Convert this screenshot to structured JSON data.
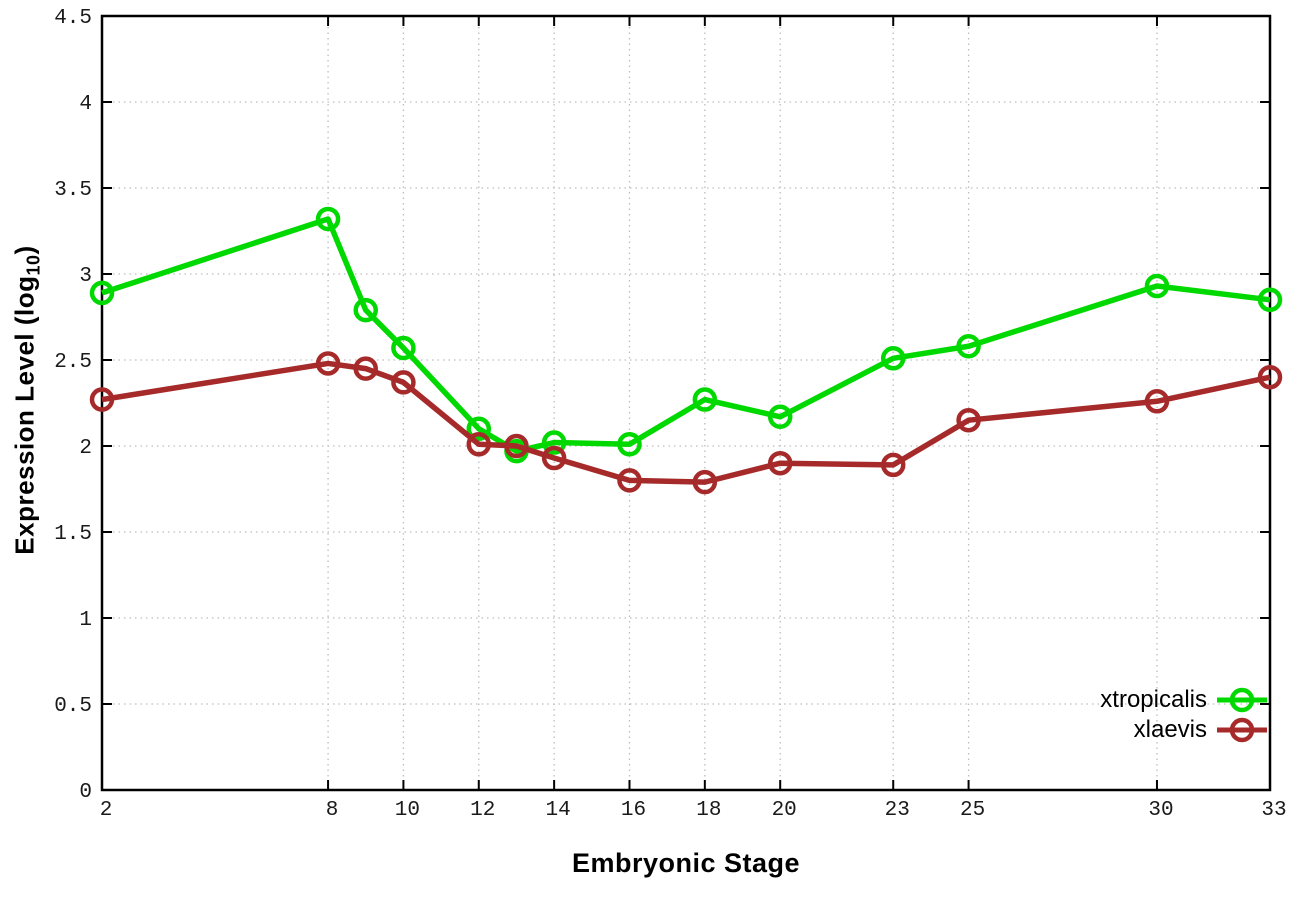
{
  "chart_data": {
    "type": "line",
    "title": "",
    "xlabel": "Embryonic Stage",
    "ylabel": "Expression Level (log10)",
    "ylabel_parts": {
      "pre": "Expression Level (log",
      "sub": "10",
      "post": ")"
    },
    "x": [
      2,
      8,
      9,
      10,
      12,
      13,
      14,
      16,
      18,
      20,
      23,
      25,
      30,
      33
    ],
    "series": [
      {
        "name": "xtropicalis",
        "color": "#00d900",
        "values": [
          2.89,
          3.32,
          2.79,
          2.57,
          2.1,
          1.97,
          2.02,
          2.01,
          2.27,
          2.17,
          2.51,
          2.58,
          2.93,
          2.85
        ]
      },
      {
        "name": "xlaevis",
        "color": "#a62a2a",
        "values": [
          2.27,
          2.48,
          2.45,
          2.37,
          2.01,
          2.0,
          1.93,
          1.8,
          1.79,
          1.9,
          1.89,
          2.15,
          2.26,
          2.4
        ]
      }
    ],
    "xticks": [
      2,
      8,
      10,
      12,
      14,
      16,
      18,
      20,
      23,
      25,
      30,
      33
    ],
    "yticks": [
      0,
      0.5,
      1,
      1.5,
      2,
      2.5,
      3,
      3.5,
      4,
      4.5
    ],
    "xlim": [
      2,
      33
    ],
    "ylim": [
      0,
      4.5
    ],
    "grid": true,
    "grid_style": "dotted",
    "grid_color": "#bdbdbd",
    "axis_color": "#000000",
    "tick_label_color": "#1a1a1a",
    "marker": "open-circle",
    "legend_position": "bottom-right"
  }
}
